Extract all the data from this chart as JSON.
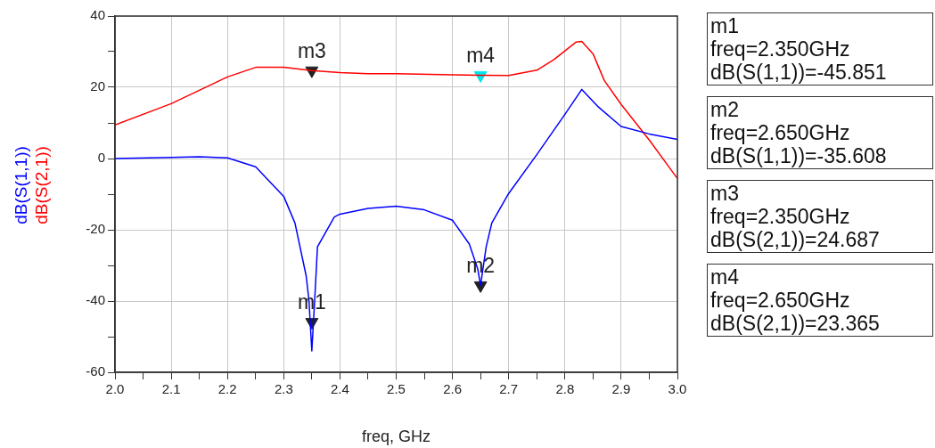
{
  "chart_data": {
    "type": "line",
    "xlabel": "freq, GHz",
    "xlim": [
      2,
      3
    ],
    "xticks": [
      {
        "value": 2,
        "label": "2.0"
      },
      {
        "value": 2.05,
        "label": null
      },
      {
        "value": 2.1,
        "label": "2.1"
      },
      {
        "value": 2.15,
        "label": null
      },
      {
        "value": 2.2,
        "label": "2.2"
      },
      {
        "value": 2.25,
        "label": null
      },
      {
        "value": 2.3,
        "label": "2.3"
      },
      {
        "value": 2.35,
        "label": null
      },
      {
        "value": 2.4,
        "label": "2.4"
      },
      {
        "value": 2.45,
        "label": null
      },
      {
        "value": 2.5,
        "label": "2.5"
      },
      {
        "value": 2.55,
        "label": null
      },
      {
        "value": 2.6,
        "label": "2.6"
      },
      {
        "value": 2.65,
        "label": null
      },
      {
        "value": 2.7,
        "label": "2.7"
      },
      {
        "value": 2.75,
        "label": null
      },
      {
        "value": 2.8,
        "label": "2.8"
      },
      {
        "value": 2.85,
        "label": null
      },
      {
        "value": 2.9,
        "label": "2.9"
      },
      {
        "value": 2.95,
        "label": null
      },
      {
        "value": 3,
        "label": "3.0"
      }
    ],
    "ylim": [
      -60,
      40
    ],
    "yticks": [
      -60,
      {
        "value": -50,
        "label": null
      },
      -40,
      {
        "value": -30,
        "label": null
      },
      -20,
      {
        "value": -10,
        "label": null
      },
      0,
      {
        "value": 10,
        "label": null
      },
      20,
      {
        "value": 30,
        "label": null
      },
      40
    ],
    "grid": true,
    "legend": false,
    "marker": "none",
    "line_style": "solid",
    "series": [
      {
        "name": "dB(S(1,1))",
        "color": "#0000ff",
        "x": [
          2.0,
          2.1,
          2.15,
          2.2,
          2.25,
          2.3,
          2.32,
          2.34,
          2.345,
          2.35,
          2.355,
          2.36,
          2.39,
          2.4,
          2.45,
          2.5,
          2.55,
          2.6,
          2.63,
          2.645,
          2.65,
          2.66,
          2.67,
          2.7,
          2.75,
          2.8,
          2.83,
          2.86,
          2.9,
          2.95,
          3.0
        ],
        "values": [
          0,
          0.3,
          0.5,
          0.2,
          -2.3,
          -10.6,
          -18.1,
          -33,
          -40,
          -54,
          -40,
          -24.8,
          -16.4,
          -15.6,
          -14,
          -13.4,
          -14.4,
          -17.3,
          -24,
          -31,
          -35.6,
          -24.8,
          -18.1,
          -9.8,
          1.1,
          12.4,
          19.4,
          14.4,
          9,
          6.9,
          5.4
        ]
      },
      {
        "name": "dB(S(2,1))",
        "color": "#ff0000",
        "x": [
          2.0,
          2.1,
          2.2,
          2.25,
          2.3,
          2.35,
          2.4,
          2.45,
          2.5,
          2.6,
          2.65,
          2.7,
          2.75,
          2.78,
          2.82,
          2.83,
          2.85,
          2.87,
          2.9,
          2.95,
          3.0
        ],
        "values": [
          9.4,
          15.4,
          22.9,
          25.6,
          25.6,
          24.7,
          24.1,
          23.8,
          23.8,
          23.5,
          23.4,
          23.3,
          24.8,
          27.7,
          32.7,
          32.9,
          29.4,
          21.9,
          15.2,
          5.2,
          -5.6
        ]
      },
      {
        "type": "scatter",
        "marker": "triangle",
        "x": [
          2.35,
          2.65,
          2.35,
          2.65
        ],
        "values": [
          -45.9,
          -35.6,
          24.7,
          23.4
        ],
        "value_labels": [
          "m1",
          "m2",
          "m3",
          "m4"
        ],
        "colors": [
          "#222222",
          "#222222",
          "#222222",
          "#00e5ee"
        ]
      }
    ],
    "annotations": [
      "m1\nfreq=2.350GHz\ndB(S(1,1))=-45.851",
      "m2\nfreq=2.650GHz\ndB(S(1,1))=-35.608",
      "m3\nfreq=2.350GHz\ndB(S(2,1))=24.687",
      "m4\nfreq=2.650GHz\ndB(S(2,1))=23.365"
    ]
  }
}
